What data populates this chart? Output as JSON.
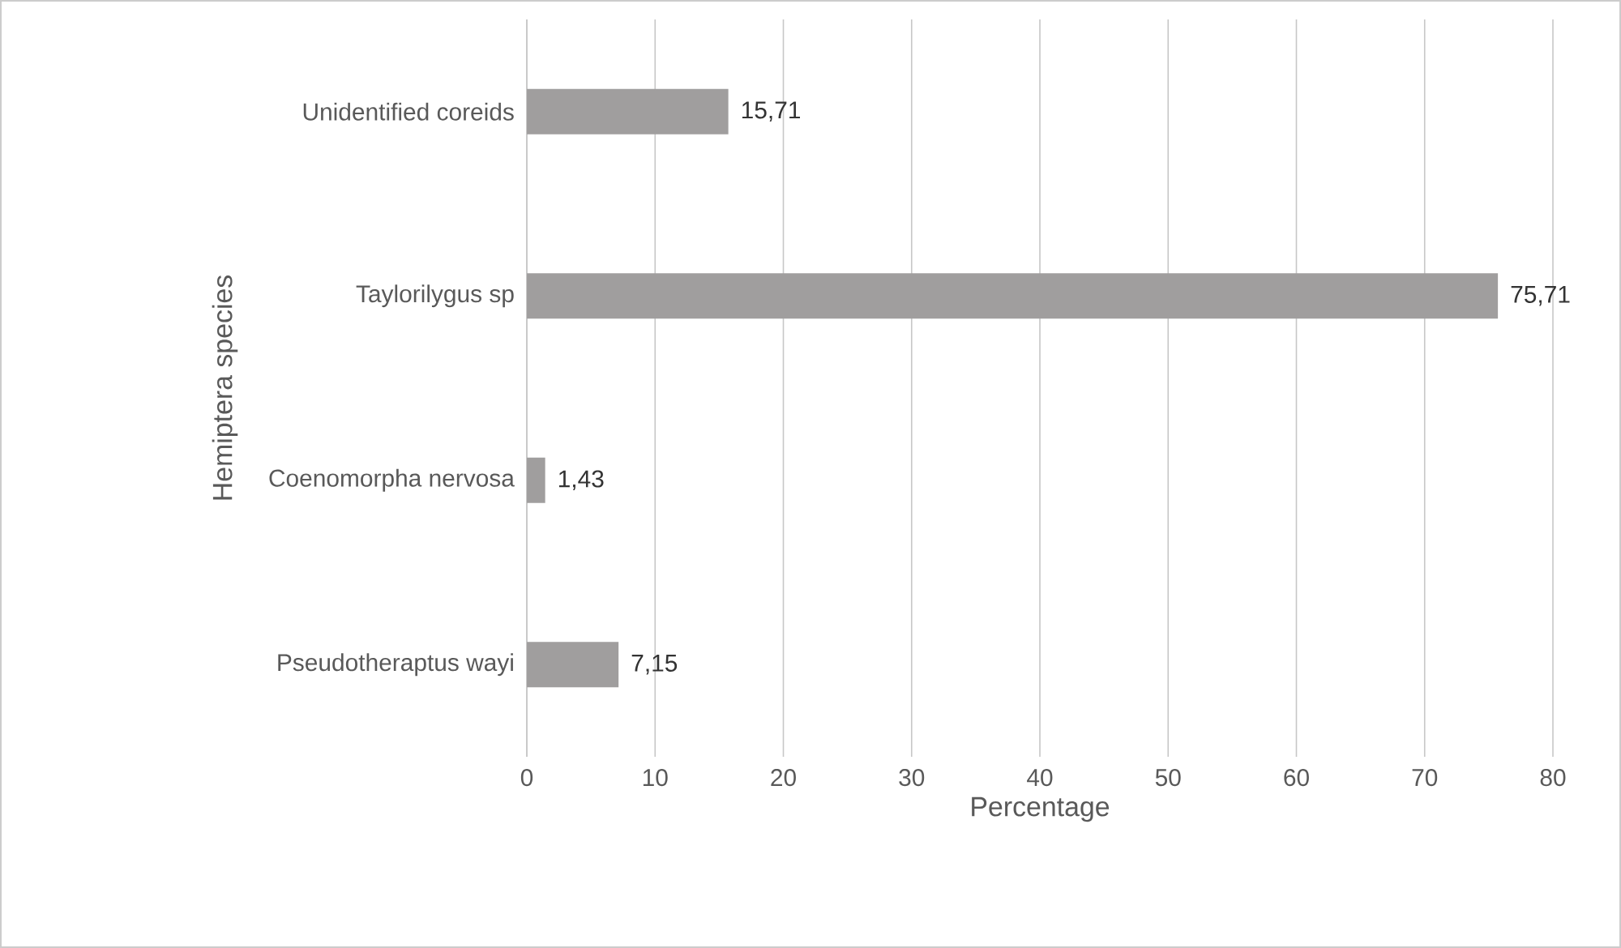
{
  "chart_data": {
    "type": "bar",
    "orientation": "horizontal",
    "categories": [
      "Unidentified coreids",
      "Taylorilygus sp",
      "Coenomorpha nervosa",
      "Pseudotheraptus wayi"
    ],
    "values": [
      15.71,
      75.71,
      1.43,
      7.15
    ],
    "value_labels": [
      "15,71",
      "75,71",
      "1,43",
      "7,15"
    ],
    "color": "#a09e9e",
    "xlim": [
      0,
      80
    ],
    "xticks": [
      0,
      10,
      20,
      30,
      40,
      50,
      60,
      70,
      80
    ],
    "grid": "x",
    "xlabel": "Percentage",
    "ylabel": "Hemiptera species"
  }
}
